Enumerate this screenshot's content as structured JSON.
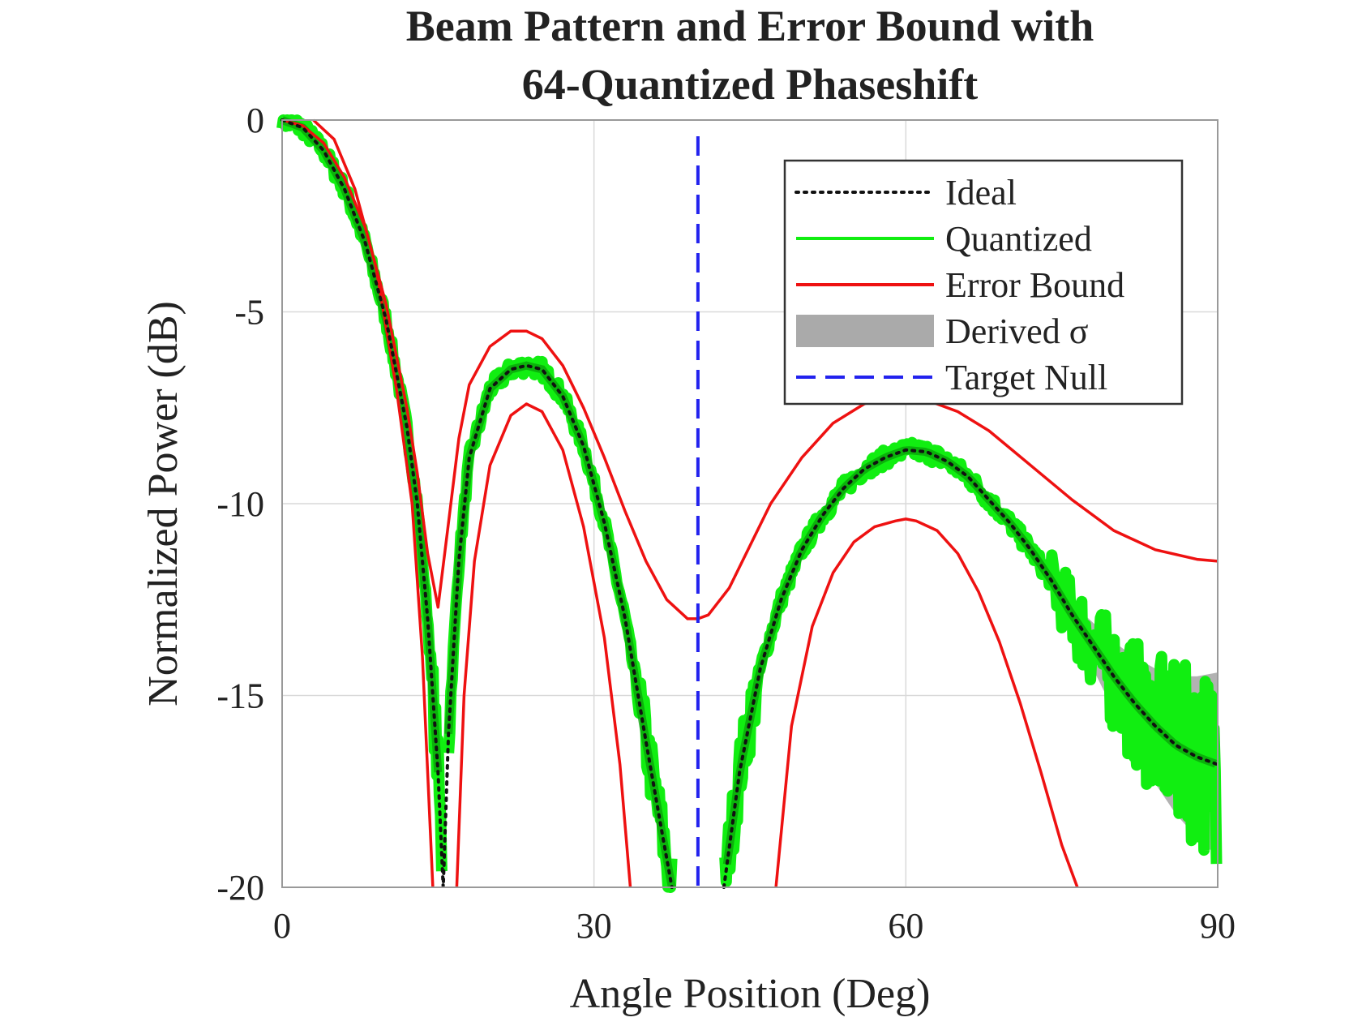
{
  "chart_data": {
    "type": "line",
    "title": [
      "Beam Pattern and Error Bound with",
      "64-Quantized Phaseshift"
    ],
    "xlabel": "Angle Position (Deg)",
    "ylabel": "Normalized Power (dB)",
    "xlim": [
      0,
      90
    ],
    "ylim": [
      -20,
      0
    ],
    "xticks": [
      0,
      30,
      60,
      90
    ],
    "yticks": [
      0,
      -5,
      -10,
      -15,
      -20
    ],
    "xtick_labels": [
      "0",
      "30",
      "60",
      "90"
    ],
    "ytick_labels": [
      "0",
      "-5",
      "-10",
      "-15",
      "-20"
    ],
    "grid": true,
    "legend_position": "top-right",
    "legend": [
      "Ideal",
      "Quantized",
      "Error Bound",
      "Derived σ",
      "Target Null"
    ],
    "colors": {
      "ideal": "#111111",
      "quantized": "#11ee11",
      "error_bound": "#ee1111",
      "sigma": "#aaaaaa",
      "target_null": "#2222ee"
    },
    "target_null_angle": 40,
    "series": [
      {
        "name": "Ideal",
        "style": "dotted",
        "x": [
          0,
          2,
          4,
          6,
          8,
          10,
          12,
          13,
          14,
          15,
          15.5,
          16,
          17,
          18,
          20,
          22,
          23.5,
          25,
          27,
          29,
          31,
          33,
          35,
          36.5,
          37.5
        ],
        "y": [
          0,
          -0.2,
          -0.8,
          -1.8,
          -3.2,
          -5.2,
          -8,
          -10,
          -13,
          -17,
          -20,
          -16,
          -11.5,
          -8.8,
          -7,
          -6.5,
          -6.4,
          -6.5,
          -7.2,
          -8.5,
          -10.5,
          -13,
          -16.2,
          -18.5,
          -20
        ]
      },
      {
        "name": "Ideal",
        "style": "dotted",
        "x": [
          42.5,
          44,
          46,
          48,
          50,
          52,
          54,
          56,
          58,
          60,
          62,
          64,
          66,
          68,
          70,
          72,
          74,
          76,
          78,
          80,
          82,
          84,
          86,
          88,
          90
        ],
        "y": [
          -20,
          -17,
          -14.3,
          -12.5,
          -11.2,
          -10.3,
          -9.6,
          -9.1,
          -8.8,
          -8.6,
          -8.65,
          -8.9,
          -9.3,
          -9.9,
          -10.5,
          -11.2,
          -12,
          -12.9,
          -13.7,
          -14.5,
          -15.2,
          -15.8,
          -16.3,
          -16.6,
          -16.8
        ]
      },
      {
        "name": "Error Bound",
        "role": "upper",
        "x": [
          0,
          2,
          4,
          6,
          8,
          10,
          12,
          13,
          14,
          15,
          16,
          17,
          18,
          20,
          22,
          23.5,
          25,
          27,
          29,
          31,
          33,
          35,
          37,
          39,
          40,
          41,
          43,
          45,
          47,
          50,
          53,
          56,
          58,
          60,
          62,
          65,
          68,
          72,
          76,
          80,
          84,
          88,
          90
        ],
        "y": [
          0,
          -0.15,
          -0.6,
          -1.5,
          -2.8,
          -4.8,
          -7.5,
          -9.2,
          -11.3,
          -12.7,
          -10.5,
          -8.3,
          -6.9,
          -5.9,
          -5.5,
          -5.5,
          -5.7,
          -6.4,
          -7.5,
          -8.8,
          -10.2,
          -11.5,
          -12.5,
          -13,
          -13,
          -12.9,
          -12.2,
          -11.1,
          -10,
          -8.8,
          -7.9,
          -7.4,
          -7.2,
          -7.2,
          -7.3,
          -7.6,
          -8.1,
          -9,
          -9.9,
          -10.7,
          -11.2,
          -11.45,
          -11.5
        ]
      },
      {
        "name": "Error Bound",
        "role": "lower-left",
        "x": [
          3,
          5,
          7,
          9,
          11,
          12.5,
          13.5,
          14.5
        ],
        "y": [
          0,
          -0.5,
          -1.8,
          -3.8,
          -7,
          -10,
          -14,
          -20
        ]
      },
      {
        "name": "Error Bound",
        "role": "lower-mid",
        "x": [
          16.8,
          17.5,
          18.5,
          20,
          22,
          23.5,
          25,
          27,
          29,
          31,
          32.5,
          33.5
        ],
        "y": [
          -20,
          -15,
          -11.5,
          -9,
          -7.7,
          -7.4,
          -7.6,
          -8.6,
          -10.6,
          -13.5,
          -16.8,
          -20
        ]
      },
      {
        "name": "Error Bound",
        "role": "lower-right",
        "x": [
          47.5,
          49,
          51,
          53,
          55,
          57,
          59,
          60,
          61,
          63,
          65,
          67,
          69,
          71,
          73,
          75,
          76.5
        ],
        "y": [
          -20,
          -15.8,
          -13.2,
          -11.8,
          -11,
          -10.6,
          -10.45,
          -10.4,
          -10.45,
          -10.7,
          -11.3,
          -12.3,
          -13.6,
          -15.2,
          -17,
          -18.9,
          -20
        ]
      }
    ],
    "sigma_band": {
      "name": "Derived σ",
      "x": [
        76,
        78,
        80,
        82,
        84,
        86,
        88,
        90
      ],
      "half_width": [
        0.3,
        0.6,
        0.9,
        1.2,
        1.5,
        1.8,
        2.1,
        2.4
      ]
    }
  },
  "legend_items": [
    {
      "label": "Ideal",
      "style": "dotted",
      "color": "#111111"
    },
    {
      "label": "Quantized",
      "style": "solid",
      "color": "#11ee11"
    },
    {
      "label": "Error Bound",
      "style": "solid",
      "color": "#ee1111"
    },
    {
      "label": "Derived σ",
      "style": "band",
      "color": "#aaaaaa"
    },
    {
      "label": "Target Null",
      "style": "dashed",
      "color": "#2222ee"
    }
  ]
}
